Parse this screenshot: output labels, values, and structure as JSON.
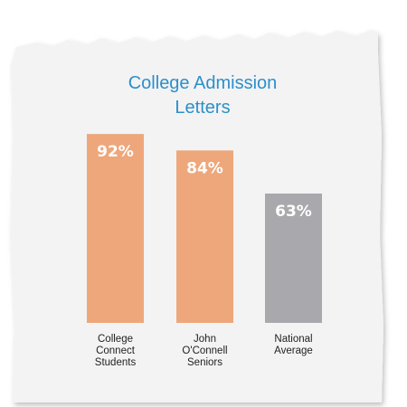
{
  "chart_data": {
    "type": "bar",
    "title_lines": [
      "College Admission",
      "Letters"
    ],
    "categories": [
      {
        "lines": [
          "College",
          "Connect",
          "Students"
        ]
      },
      {
        "lines": [
          "John",
          "O'Connell",
          "Seniors"
        ]
      },
      {
        "lines": [
          "National",
          "Average"
        ]
      }
    ],
    "values": [
      92,
      84,
      63
    ],
    "value_labels": [
      "92%",
      "84%",
      "63%"
    ],
    "ylim": [
      0,
      100
    ],
    "grid": false,
    "legend": "none",
    "colors": [
      "#eda77b",
      "#eda77b",
      "#a9a9ad"
    ]
  },
  "colors": {
    "paper": "#f3f3f4",
    "title": "#2d8fc9",
    "label": "#222222"
  }
}
